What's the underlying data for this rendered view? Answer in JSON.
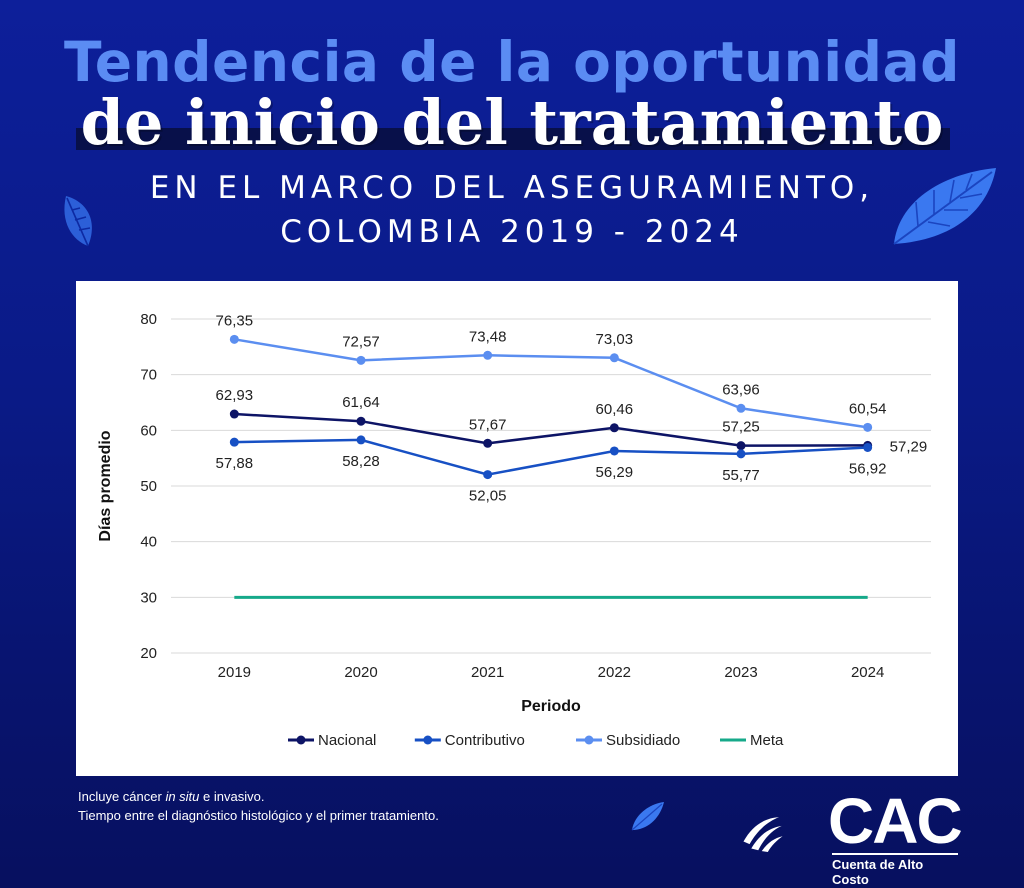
{
  "header": {
    "title_line1": "Tendencia de la oportunidad",
    "title_line2": "de inicio del tratamiento",
    "subtitle_line1": "EN EL MARCO DEL ASEGURAMIENTO,",
    "subtitle_line2": "COLOMBIA 2019 - 2024"
  },
  "footnotes": {
    "line1_before": "Incluye cáncer ",
    "line1_italic": "in situ",
    "line1_after": " e invasivo.",
    "line2": "Tiempo entre el diagnóstico histológico y el primer tratamiento."
  },
  "logo": {
    "text": "CAC",
    "subtext": "Cuenta de Alto Costo"
  },
  "colors": {
    "background": "#0b1a8a",
    "nacional": "#0d1466",
    "contributivo": "#1750c4",
    "subsidiado": "#5b8ef0",
    "meta": "#16a98a",
    "title_accent": "#5b8cf3"
  },
  "chart_data": {
    "type": "line",
    "xlabel": "Periodo",
    "ylabel": "Días promedio",
    "ylim": [
      20,
      80
    ],
    "yticks": [
      20,
      30,
      40,
      50,
      60,
      70,
      80
    ],
    "categories": [
      "2019",
      "2020",
      "2021",
      "2022",
      "2023",
      "2024"
    ],
    "grid": true,
    "legend_position": "bottom",
    "series": [
      {
        "name": "Nacional",
        "values": [
          62.93,
          61.64,
          57.67,
          60.46,
          57.25,
          57.29
        ],
        "labels": [
          "62,93",
          "61,64",
          "57,67",
          "60,46",
          "57,25",
          "57,29"
        ],
        "markers": true
      },
      {
        "name": "Contributivo",
        "values": [
          57.88,
          58.28,
          52.05,
          56.29,
          55.77,
          56.92
        ],
        "labels": [
          "57,88",
          "58,28",
          "52,05",
          "56,29",
          "55,77",
          "56,92"
        ],
        "markers": true
      },
      {
        "name": "Subsidiado",
        "values": [
          76.35,
          72.57,
          73.48,
          73.03,
          63.96,
          60.54
        ],
        "labels": [
          "76,35",
          "72,57",
          "73,48",
          "73,03",
          "63,96",
          "60,54"
        ],
        "markers": true
      },
      {
        "name": "Meta",
        "values": [
          30,
          30,
          30,
          30,
          30,
          30
        ],
        "markers": false
      }
    ]
  }
}
